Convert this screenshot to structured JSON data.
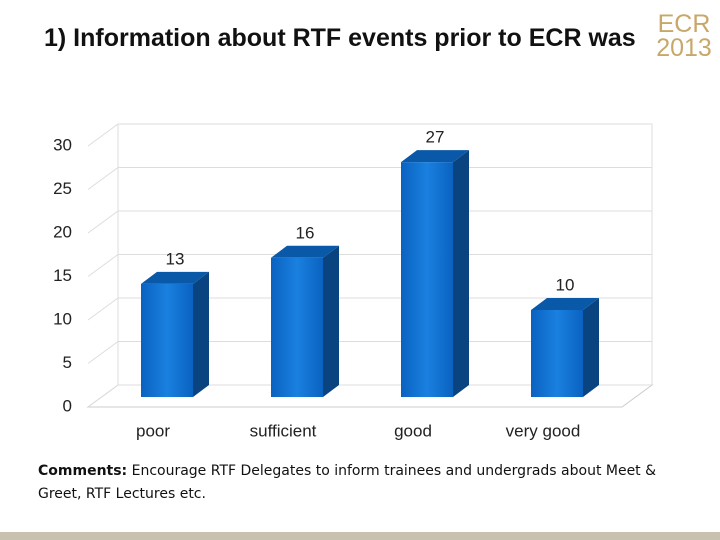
{
  "chart_data": {
    "type": "bar",
    "title": "1) Information about RTF events prior to ECR was",
    "categories": [
      "poor",
      "sufficient",
      "good",
      "very good"
    ],
    "values": [
      13,
      16,
      27,
      10
    ],
    "color": "#0b6fd0",
    "ylim": [
      0,
      30
    ],
    "yticks": [
      0,
      5,
      10,
      15,
      20,
      25,
      30
    ],
    "grid": true
  },
  "comment": {
    "label": "Comments:",
    "text": "Encourage RTF Delegates to inform trainees and undergrads about Meet & Greet, RTF Lectures etc."
  },
  "logo": {
    "name": "ECR",
    "year": "2013"
  }
}
